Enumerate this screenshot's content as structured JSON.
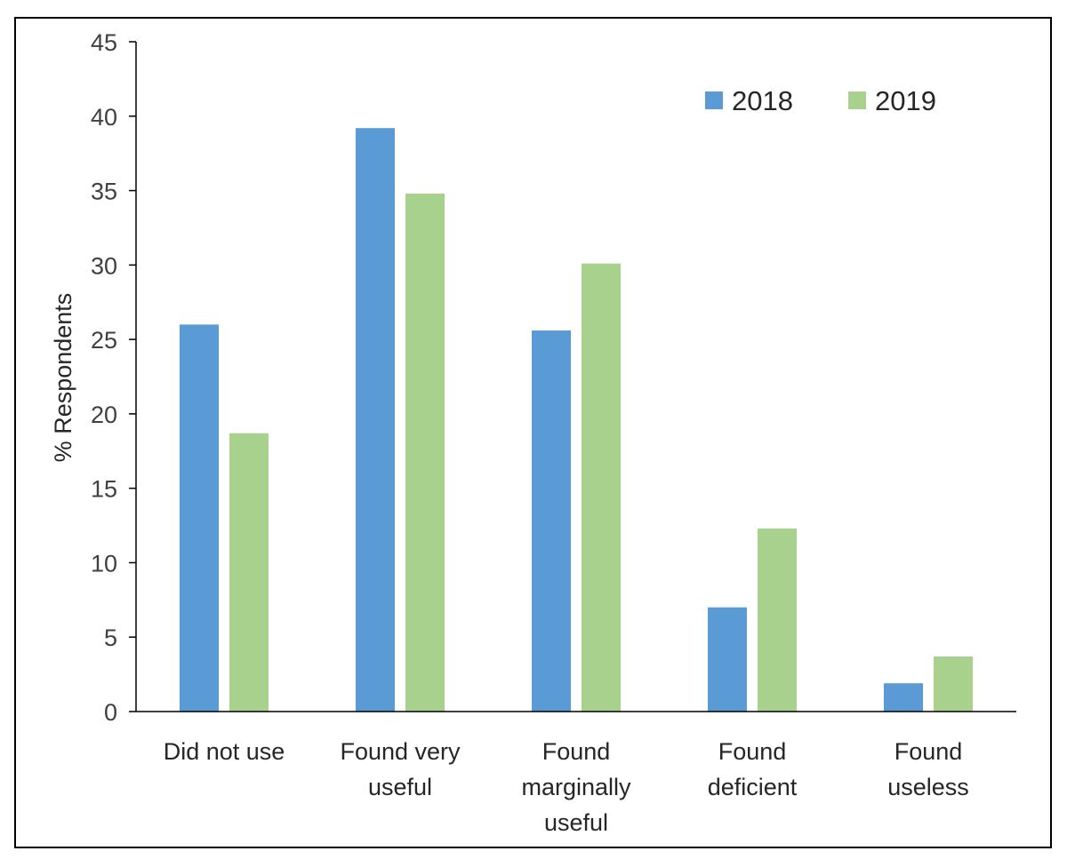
{
  "chart_data": {
    "type": "bar",
    "categories": [
      [
        "Did not use"
      ],
      [
        "Found very",
        "useful"
      ],
      [
        "Found",
        "marginally",
        "useful"
      ],
      [
        "Found",
        "deficient"
      ],
      [
        "Found",
        "useless"
      ]
    ],
    "series": [
      {
        "name": "2018",
        "color": "#5b9bd5",
        "values": [
          26.0,
          39.2,
          25.6,
          7.0,
          1.9
        ]
      },
      {
        "name": "2019",
        "color": "#a9d18e",
        "values": [
          18.7,
          34.8,
          30.1,
          12.3,
          3.7
        ]
      }
    ],
    "title": "",
    "xlabel": "",
    "ylabel": "% Respondents",
    "ylim": [
      0,
      45
    ],
    "yticks": [
      0,
      5,
      10,
      15,
      20,
      25,
      30,
      35,
      40,
      45
    ],
    "grid": false,
    "legend_position": "top-right"
  }
}
